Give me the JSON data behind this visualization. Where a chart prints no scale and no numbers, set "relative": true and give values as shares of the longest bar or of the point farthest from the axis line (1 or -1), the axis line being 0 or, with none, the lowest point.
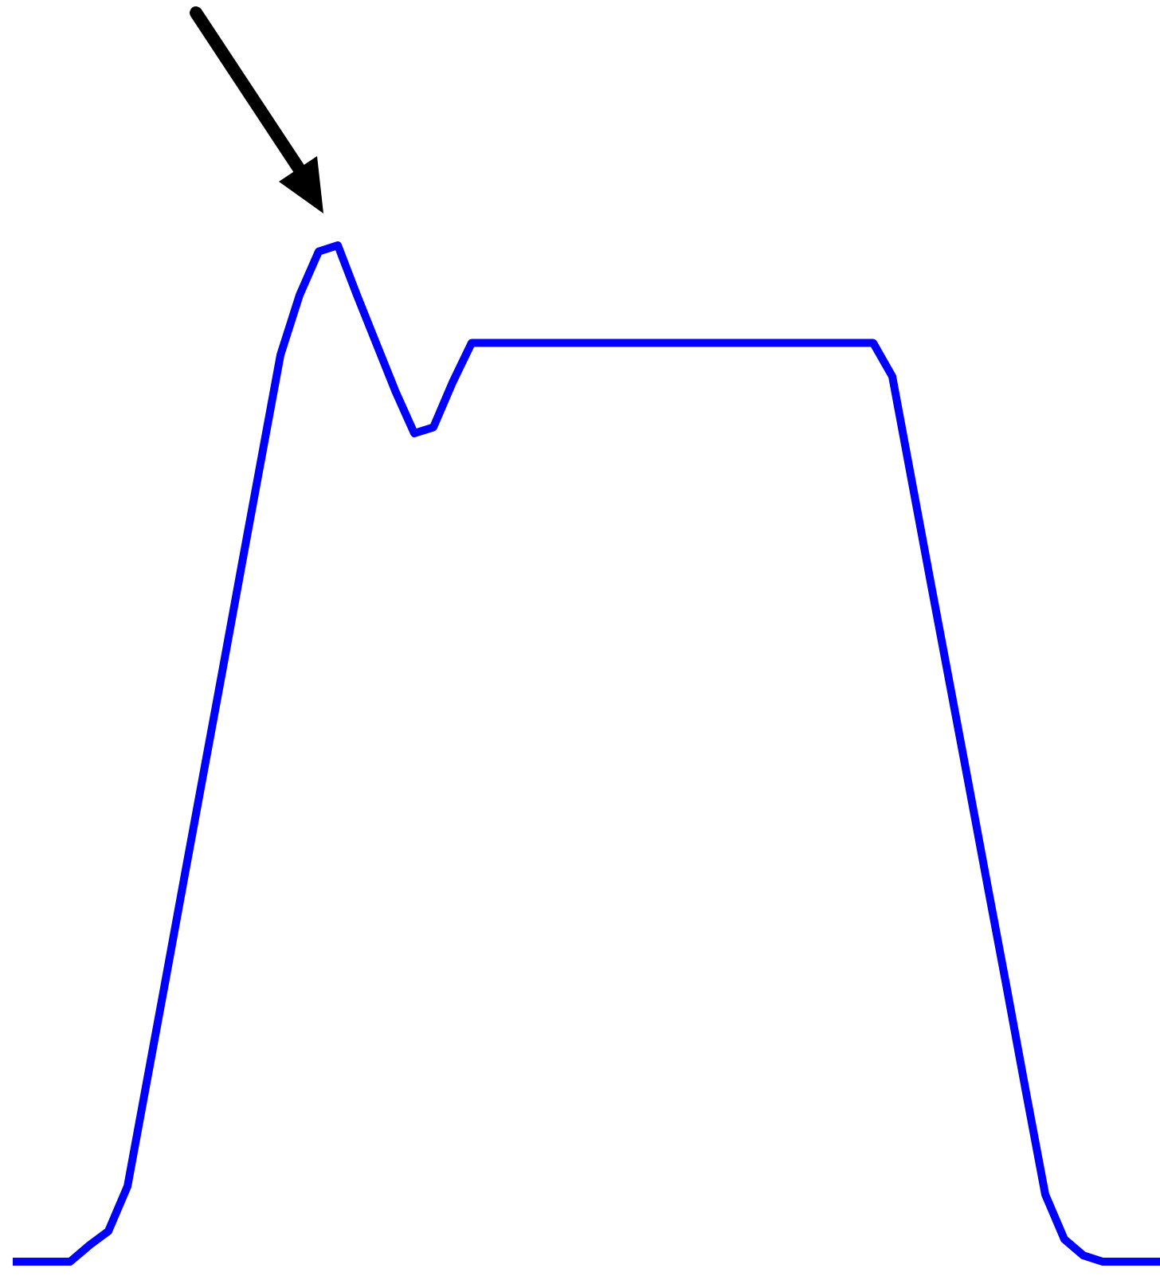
{
  "chart_data": {
    "type": "line",
    "relative": true,
    "color": "#0000ff",
    "marker": "none",
    "line_style": "solid",
    "categories": [
      null,
      null,
      null,
      null,
      null,
      null,
      null,
      null,
      null,
      null,
      null,
      null,
      null,
      null,
      null,
      null,
      null,
      null,
      null,
      null,
      null,
      null,
      null,
      null,
      null,
      null,
      null,
      null,
      null,
      null,
      null,
      null,
      null,
      null,
      null,
      null,
      null,
      null,
      null,
      null,
      null,
      null,
      null,
      null,
      null,
      null,
      null,
      null,
      null,
      null,
      null,
      null,
      null,
      null,
      null,
      null,
      null,
      null,
      null,
      null,
      null
    ],
    "values": [
      0,
      0,
      0,
      0,
      0.016,
      0.03,
      0.074,
      0.176,
      0.278,
      0.381,
      0.483,
      0.585,
      0.688,
      0.79,
      0.892,
      0.951,
      0.994,
      1,
      0.951,
      0.904,
      0.857,
      0.815,
      0.821,
      0.865,
      0.904,
      0.904,
      0.904,
      0.904,
      0.904,
      0.904,
      0.904,
      0.904,
      0.904,
      0.904,
      0.904,
      0.904,
      0.904,
      0.904,
      0.904,
      0.904,
      0.904,
      0.904,
      0.904,
      0.904,
      0.904,
      0.904,
      0.871,
      0.77,
      0.669,
      0.569,
      0.469,
      0.368,
      0.268,
      0.166,
      0.066,
      0.022,
      0.006,
      0,
      0,
      0,
      0
    ]
  }
}
